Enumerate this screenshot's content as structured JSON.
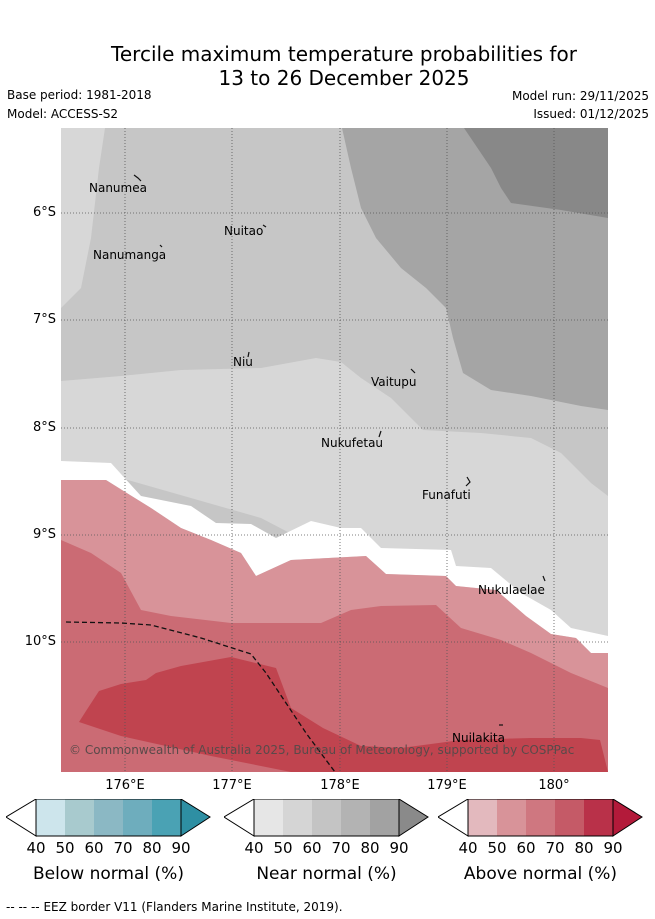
{
  "title": {
    "line1": "Tercile maximum temperature probabilities for",
    "line2": "13 to 26 December 2025"
  },
  "meta": {
    "base_period": "Base period: 1981-2018",
    "model": "Model: ACCESS-S2",
    "model_run": "Model run: 29/11/2025",
    "issued": "Issued: 01/12/2025"
  },
  "map": {
    "lat_labels": [
      "6°S",
      "7°S",
      "8°S",
      "9°S",
      "10°S"
    ],
    "lon_labels": [
      "176°E",
      "177°E",
      "178°E",
      "179°E",
      "180°"
    ],
    "islands": [
      "Nanumea",
      "Nuitao",
      "Nanumanga",
      "Niu",
      "Vaitupu",
      "Nukufetau",
      "Funafuti",
      "Nukulaelae",
      "Nuilakita"
    ],
    "copyright": "© Commonwealth of Australia 2025, Bureau of Meteorology, supported by COSPPac"
  },
  "colorbars": [
    {
      "caption": "Below normal (%)",
      "ticks": [
        "40",
        "50",
        "60",
        "70",
        "80",
        "90"
      ],
      "colors": [
        "#cde5ec",
        "#a8cace",
        "#8bb8c4",
        "#6eadbd",
        "#4aa2b4",
        "#2e8fa3"
      ]
    },
    {
      "caption": "Near normal (%)",
      "ticks": [
        "40",
        "50",
        "60",
        "70",
        "80",
        "90"
      ],
      "colors": [
        "#e6e6e6",
        "#d5d5d5",
        "#c4c4c4",
        "#b3b3b3",
        "#a2a2a2",
        "#8a8a8a"
      ]
    },
    {
      "caption": "Above normal (%)",
      "ticks": [
        "40",
        "50",
        "60",
        "70",
        "80",
        "90"
      ],
      "colors": [
        "#e3b9be",
        "#d89399",
        "#cf7780",
        "#c55a67",
        "#b93149",
        "#b31a3a"
      ]
    }
  ],
  "footer": {
    "eez_symbol": "-- -- --",
    "eez_text": "EEZ border V11 (Flanders Marine Institute, 2019)."
  }
}
